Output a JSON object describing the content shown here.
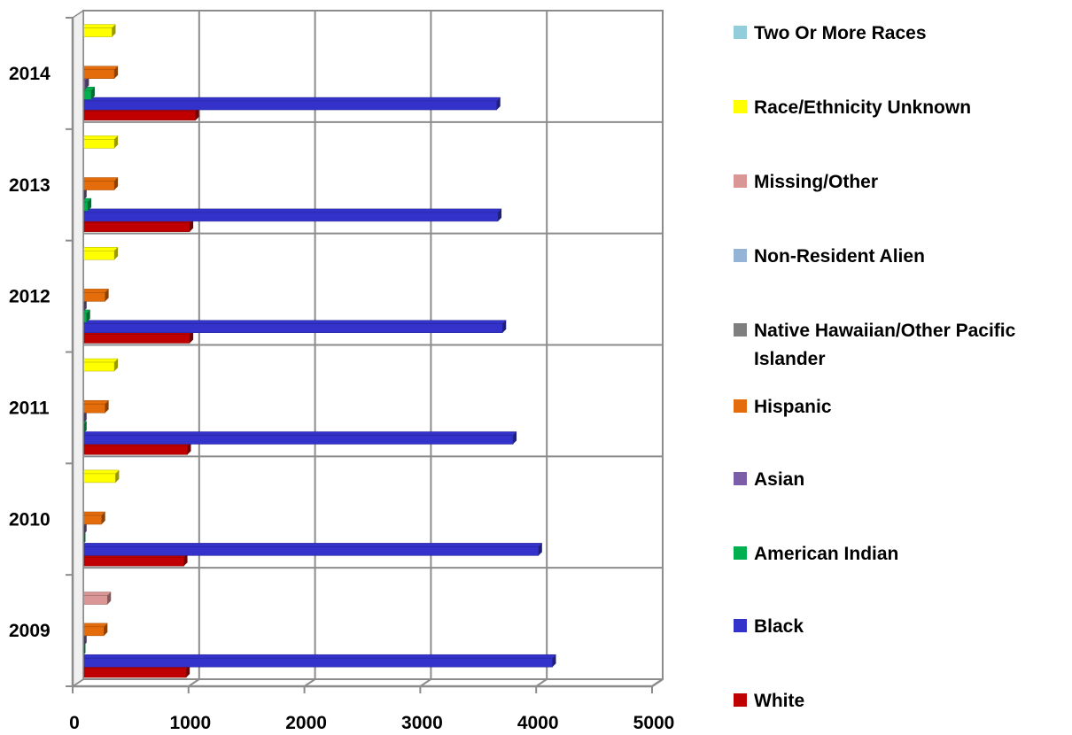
{
  "chart_data": {
    "type": "bar",
    "orientation": "horizontal",
    "grid": true,
    "legend_position": "right",
    "xlim": [
      0,
      5000
    ],
    "x_ticks": [
      "0",
      "1000",
      "2000",
      "3000",
      "4000",
      "5000"
    ],
    "categories": [
      "2009",
      "2010",
      "2011",
      "2012",
      "2013",
      "2014"
    ],
    "series": [
      {
        "name": "White",
        "color": "#C00000",
        "values": [
          980,
          960,
          990,
          1010,
          1010,
          1060
        ]
      },
      {
        "name": "Black",
        "color": "#3333CC",
        "values": [
          4140,
          4020,
          3800,
          3710,
          3670,
          3660
        ]
      },
      {
        "name": "American Indian",
        "color": "#00B050",
        "values": [
          80,
          80,
          90,
          120,
          130,
          160
        ]
      },
      {
        "name": "Asian",
        "color": "#7B5EA7",
        "values": [
          90,
          90,
          90,
          90,
          90,
          110
        ]
      },
      {
        "name": "Hispanic",
        "color": "#E46C0A",
        "values": [
          270,
          250,
          280,
          280,
          360,
          360
        ]
      },
      {
        "name": "Native Hawaiian/Other Pacific Islander",
        "color": "#7F7F7F",
        "values": [
          20,
          20,
          20,
          20,
          20,
          20
        ]
      },
      {
        "name": "Non-Resident Alien",
        "color": "#95B3D7",
        "values": [
          50,
          50,
          50,
          60,
          60,
          60
        ]
      },
      {
        "name": "Missing/Other",
        "color": "#D99694",
        "values": [
          300,
          0,
          0,
          0,
          0,
          0
        ]
      },
      {
        "name": "Race/Ethnicity Unknown",
        "color": "#FFFF00",
        "values": [
          20,
          370,
          360,
          360,
          360,
          340
        ]
      },
      {
        "name": "Two Or More Races",
        "color": "#92CDDC",
        "values": [
          0,
          20,
          30,
          50,
          50,
          60
        ]
      }
    ]
  }
}
